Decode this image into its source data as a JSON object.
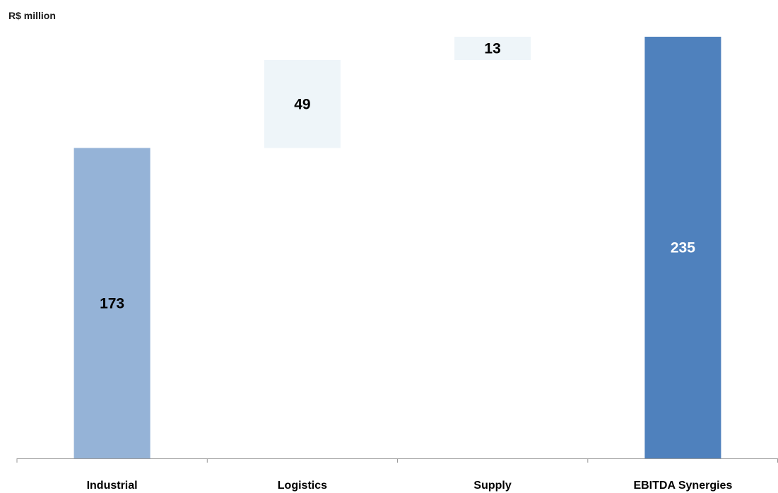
{
  "unit_label": "R$ million",
  "chart_data": {
    "type": "bar",
    "subtype": "waterfall",
    "categories": [
      "Industrial",
      "Logistics",
      "Supply",
      "EBITDA Synergies"
    ],
    "bars": [
      {
        "category": "Industrial",
        "value": 173,
        "base": 0,
        "kind": "increment",
        "color": "#95b3d7",
        "label_color": "#000000"
      },
      {
        "category": "Logistics",
        "value": 49,
        "base": 173,
        "kind": "increment",
        "color": "#eef5f9",
        "label_color": "#000000"
      },
      {
        "category": "Supply",
        "value": 13,
        "base": 222,
        "kind": "increment",
        "color": "#eef5f9",
        "label_color": "#000000"
      },
      {
        "category": "EBITDA Synergies",
        "value": 235,
        "base": 0,
        "kind": "total",
        "color": "#4f81bd",
        "label_color": "#ffffff"
      }
    ],
    "data_labels": [
      "173",
      "49",
      "13",
      "235"
    ],
    "ylim": [
      0,
      235
    ],
    "grid": false,
    "legend": "none"
  }
}
